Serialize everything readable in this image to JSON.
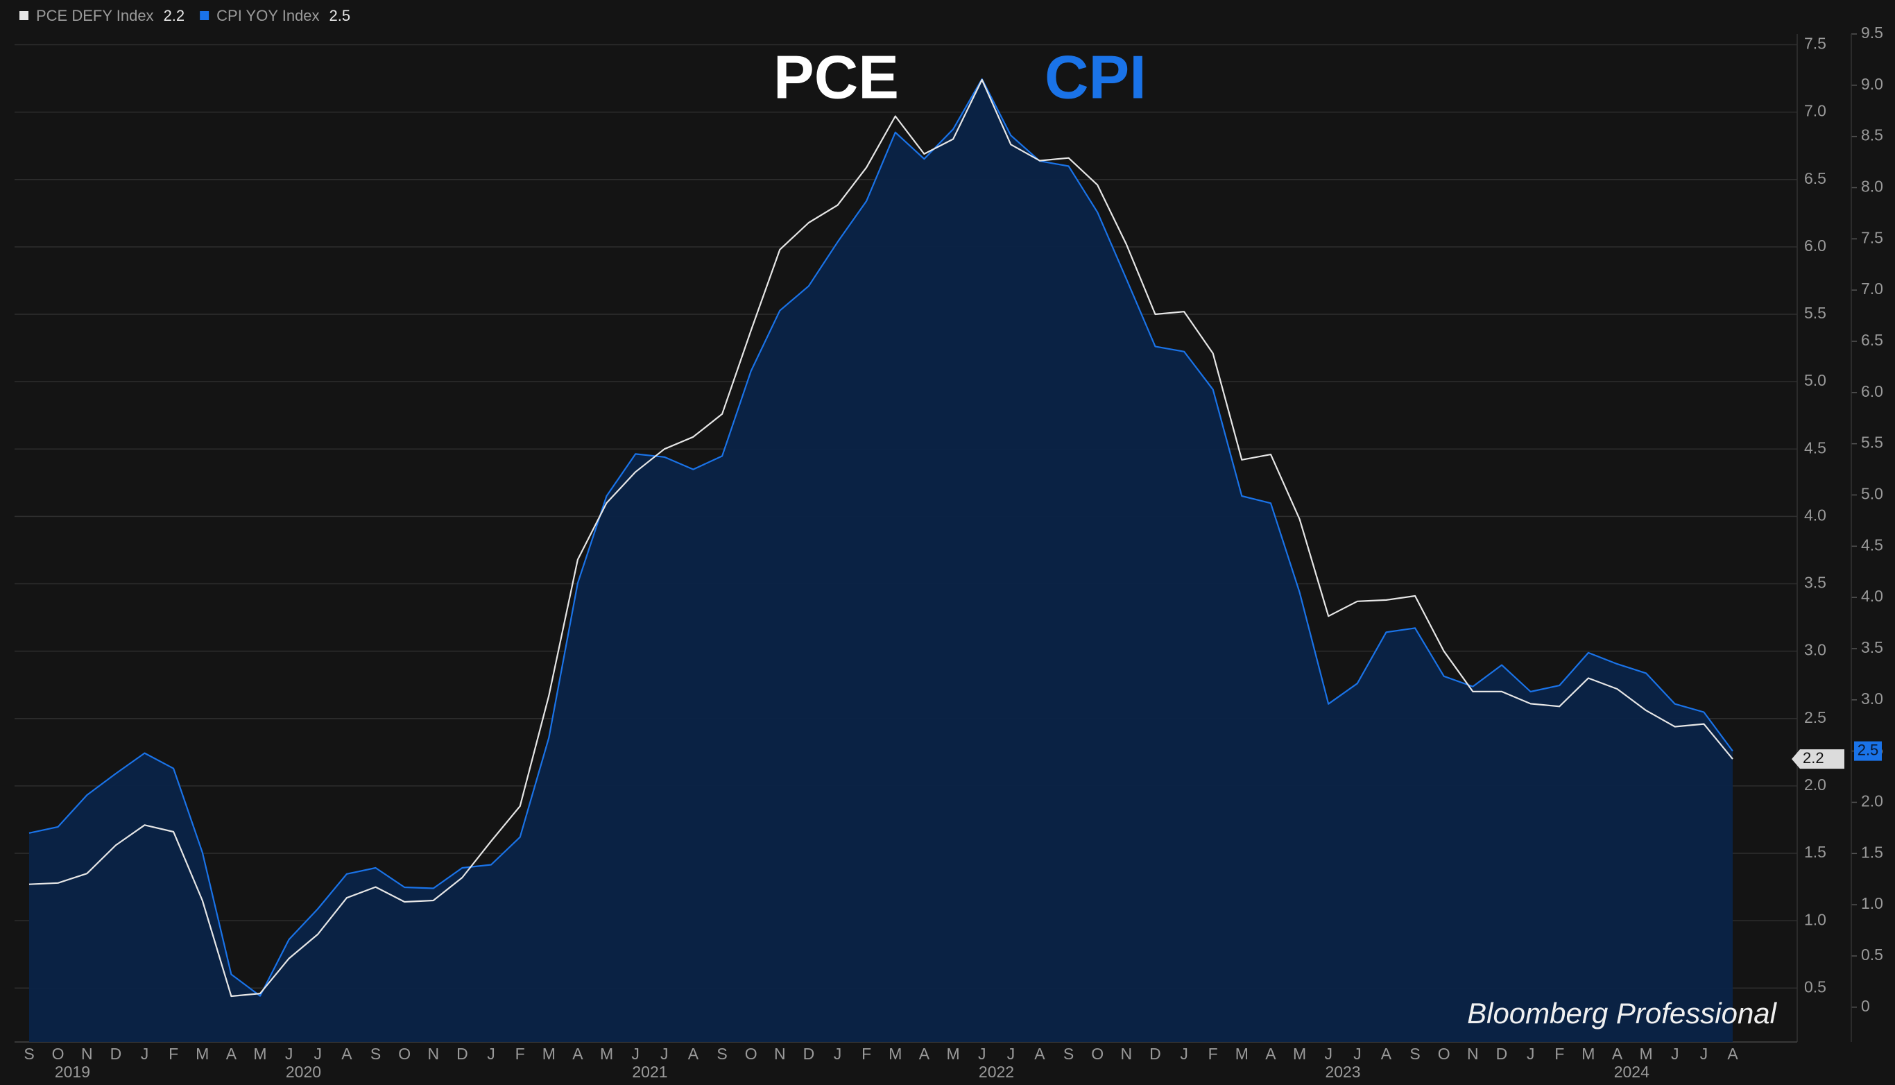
{
  "chart_data": {
    "type": "line",
    "annotations": [
      {
        "text": "PCE",
        "color": "#ffffff"
      },
      {
        "text": "CPI",
        "color": "#1a73e8"
      }
    ],
    "watermark": "Bloomberg Professional",
    "categories": [
      "S",
      "O",
      "N",
      "D",
      "J",
      "F",
      "M",
      "A",
      "M",
      "J",
      "J",
      "A",
      "S",
      "O",
      "N",
      "D",
      "J",
      "F",
      "M",
      "A",
      "M",
      "J",
      "J",
      "A",
      "S",
      "O",
      "N",
      "D",
      "J",
      "F",
      "M",
      "A",
      "M",
      "J",
      "J",
      "A",
      "S",
      "O",
      "N",
      "D",
      "J",
      "F",
      "M",
      "A",
      "M",
      "J",
      "J",
      "A",
      "S",
      "O",
      "N",
      "D",
      "J",
      "F",
      "M",
      "A",
      "M",
      "J",
      "J",
      "A"
    ],
    "years": [
      "2019",
      "2020",
      "2021",
      "2022",
      "2023",
      "2024"
    ],
    "series": [
      {
        "name": "PCE DEFY Index",
        "color": "#e6e6e6",
        "axis": "y",
        "values": [
          1.27,
          1.28,
          1.35,
          1.56,
          1.71,
          1.66,
          1.15,
          0.44,
          0.46,
          0.72,
          0.9,
          1.17,
          1.25,
          1.14,
          1.15,
          1.32,
          1.59,
          1.85,
          2.67,
          3.68,
          4.1,
          4.33,
          4.5,
          4.59,
          4.76,
          5.38,
          5.98,
          6.18,
          6.31,
          6.59,
          6.97,
          6.69,
          6.8,
          7.24,
          6.76,
          6.64,
          6.66,
          6.46,
          6.02,
          5.5,
          5.52,
          5.21,
          4.42,
          4.46,
          3.98,
          3.26,
          3.37,
          3.38,
          3.41,
          3.0,
          2.7,
          2.7,
          2.61,
          2.59,
          2.8,
          2.72,
          2.56,
          2.44,
          2.46,
          2.2
        ]
      },
      {
        "name": "CPI YOY Index",
        "color": "#1a73e8",
        "axis": "y2",
        "values": [
          1.7,
          1.76,
          2.07,
          2.28,
          2.48,
          2.33,
          1.51,
          0.32,
          0.11,
          0.66,
          0.96,
          1.3,
          1.36,
          1.17,
          1.16,
          1.36,
          1.39,
          1.66,
          2.63,
          4.14,
          4.99,
          5.4,
          5.37,
          5.25,
          5.38,
          6.21,
          6.8,
          7.04,
          7.47,
          7.87,
          8.54,
          8.28,
          8.57,
          9.06,
          8.51,
          8.26,
          8.21,
          7.76,
          7.11,
          6.45,
          6.4,
          6.03,
          4.99,
          4.92,
          4.05,
          2.96,
          3.16,
          3.66,
          3.7,
          3.23,
          3.13,
          3.34,
          3.08,
          3.14,
          3.46,
          3.35,
          3.26,
          2.96,
          2.88,
          2.5
        ]
      }
    ],
    "area_color": "#0a2347",
    "ylim": [
      0.1,
      7.58
    ],
    "yticks": [
      0.5,
      {
        "value": 1,
        "label": "1.0"
      },
      1.5,
      {
        "value": 2,
        "label": "2.0"
      },
      2.5,
      {
        "value": 3,
        "label": "3.0"
      },
      3.5,
      {
        "value": 4,
        "label": "4.0"
      },
      4.5,
      {
        "value": 5,
        "label": "5.0"
      },
      5.5,
      {
        "value": 6,
        "label": "6.0"
      },
      6.5,
      {
        "value": 7,
        "label": "7.0"
      },
      7.5
    ],
    "y2lim": [
      -0.34,
      9.5
    ],
    "y2ticks": [
      0,
      0.5,
      {
        "value": 1,
        "label": "1.0"
      },
      1.5,
      {
        "value": 2,
        "label": "2.0"
      },
      2.5,
      {
        "value": 3,
        "label": "3.0"
      },
      3.5,
      {
        "value": 4,
        "label": "4.0"
      },
      4.5,
      {
        "value": 5,
        "label": "5.0"
      },
      5.5,
      {
        "value": 6,
        "label": "6.0"
      },
      6.5,
      {
        "value": 7,
        "label": "7.0"
      },
      7.5,
      {
        "value": 8,
        "label": "8.0"
      },
      8.5,
      {
        "value": 9,
        "label": "9.0"
      },
      9.5
    ],
    "grid": true
  }
}
